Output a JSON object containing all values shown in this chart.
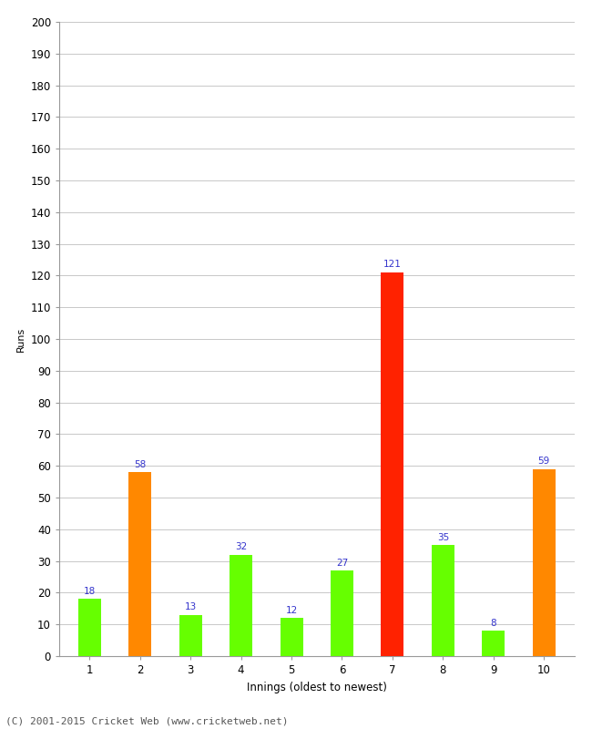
{
  "xlabel": "Innings (oldest to newest)",
  "ylabel": "Runs",
  "categories": [
    "1",
    "2",
    "3",
    "4",
    "5",
    "6",
    "7",
    "8",
    "9",
    "10"
  ],
  "values": [
    18,
    58,
    13,
    32,
    12,
    27,
    121,
    35,
    8,
    59
  ],
  "bar_colors": [
    "#66ff00",
    "#ff8800",
    "#66ff00",
    "#66ff00",
    "#66ff00",
    "#66ff00",
    "#ff2200",
    "#66ff00",
    "#66ff00",
    "#ff8800"
  ],
  "ylim": [
    0,
    200
  ],
  "yticks": [
    0,
    10,
    20,
    30,
    40,
    50,
    60,
    70,
    80,
    90,
    100,
    110,
    120,
    130,
    140,
    150,
    160,
    170,
    180,
    190,
    200
  ],
  "label_color": "#3333cc",
  "label_fontsize": 7.5,
  "axis_fontsize": 8.5,
  "ylabel_fontsize": 8,
  "footer": "(C) 2001-2015 Cricket Web (www.cricketweb.net)",
  "footer_fontsize": 8,
  "background_color": "#ffffff",
  "grid_color": "#c8c8c8",
  "bar_width": 0.45
}
